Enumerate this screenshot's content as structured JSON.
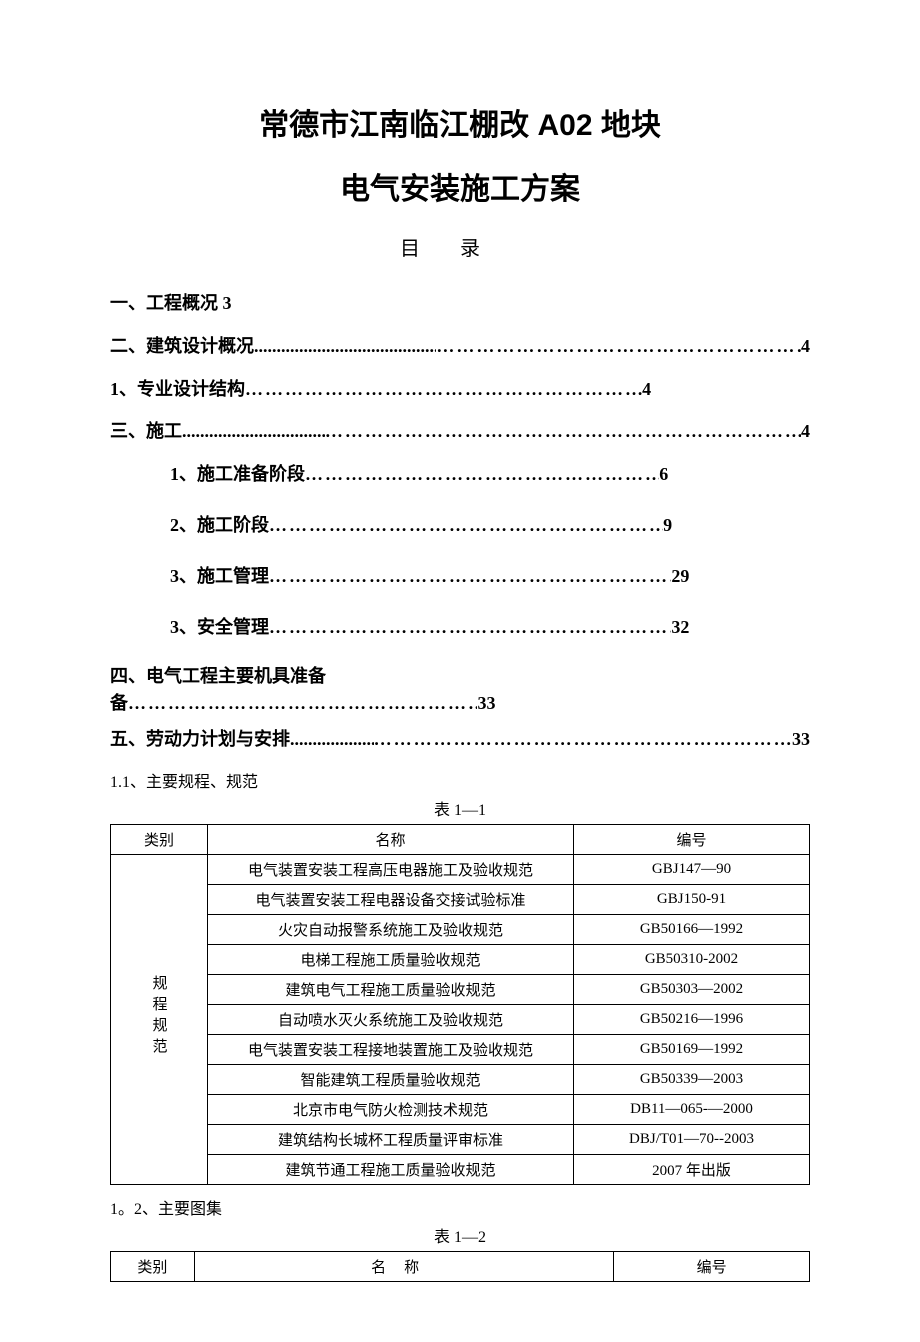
{
  "title_line1": "常德市江南临江棚改 A02 地块",
  "title_line2": "电气安装施工方案",
  "toc_heading": "目录",
  "toc": {
    "i1": {
      "text": "一、工程概况 3"
    },
    "i2": {
      "text": "二、建筑设计概况",
      "page": "4"
    },
    "i3": {
      "text": "1、专业设计结构",
      "page": "4"
    },
    "i4": {
      "text": "三、施工",
      "page": "4"
    },
    "i5": {
      "text": "1、施工准备阶段",
      "page": "6"
    },
    "i6": {
      "text": "2、施工阶段",
      "page": "9"
    },
    "i7": {
      "text": "3、施工管理",
      "page": "29"
    },
    "i8": {
      "text": "3、安全管理",
      "page": "32"
    },
    "i9": {
      "text": "四、电气工程主要机具准备",
      "page": "33"
    },
    "i10": {
      "text": "五、劳动力计划与安排",
      "page": "33"
    }
  },
  "section_1_1": "1.1、主要规程、规范",
  "table1": {
    "caption": "表 1—1",
    "headers": {
      "cat": "类别",
      "name": "名称",
      "num": "编号"
    },
    "cat_label": "规程规范",
    "rows": [
      {
        "name": "电气装置安装工程高压电器施工及验收规范",
        "num": "GBJ147—90"
      },
      {
        "name": "电气装置安装工程电器设备交接试验标准",
        "num": "GBJ150-91"
      },
      {
        "name": "火灾自动报警系统施工及验收规范",
        "num": "GB50166—1992"
      },
      {
        "name": "电梯工程施工质量验收规范",
        "num": "GB50310-2002"
      },
      {
        "name": "建筑电气工程施工质量验收规范",
        "num": "GB50303—2002"
      },
      {
        "name": "自动喷水灭火系统施工及验收规范",
        "num": "GB50216—1996"
      },
      {
        "name": "电气装置安装工程接地装置施工及验收规范",
        "num": "GB50169—1992"
      },
      {
        "name": "智能建筑工程质量验收规范",
        "num": "GB50339—2003"
      },
      {
        "name": "北京市电气防火检测技术规范",
        "num": "DB11—065-—2000"
      },
      {
        "name": "建筑结构长城杯工程质量评审标准",
        "num": "DBJ/T01—70--2003"
      },
      {
        "name": "建筑节通工程施工质量验收规范",
        "num": "2007 年出版"
      }
    ]
  },
  "section_1_2": "1。2、主要图集",
  "table2": {
    "caption": "表 1—2",
    "headers": {
      "cat": "类别",
      "name": "名称",
      "num": "编号"
    }
  }
}
